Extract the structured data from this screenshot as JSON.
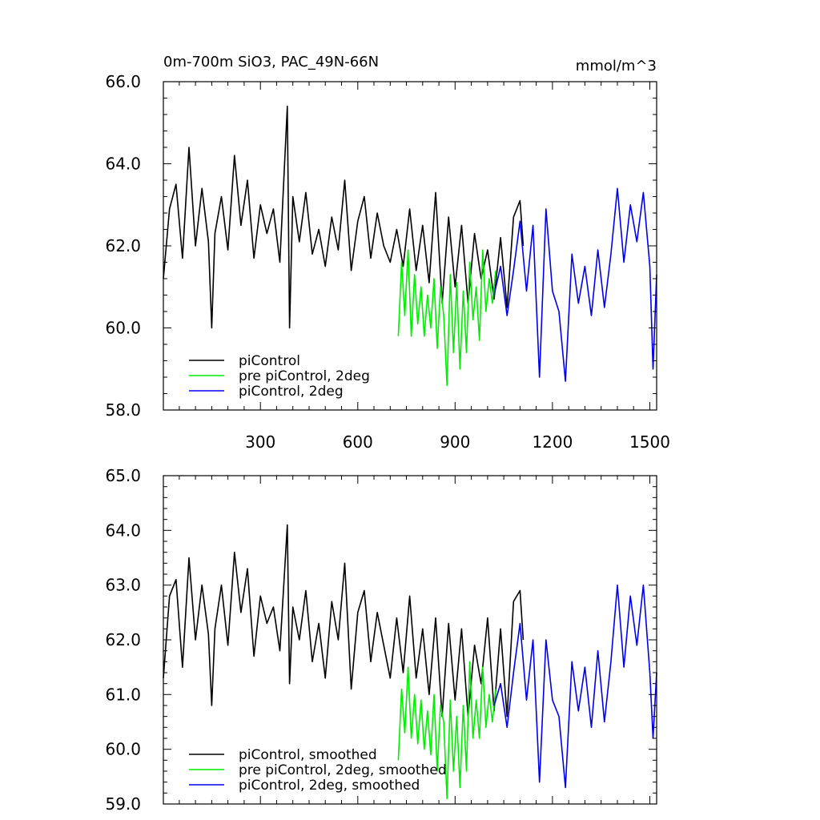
{
  "chart_data": [
    {
      "type": "line",
      "title": "0m-700m SiO3, PAC_49N-66N",
      "units": "mmol/m^3",
      "xlim": [
        1,
        1521
      ],
      "ylim": [
        58.0,
        66.0
      ],
      "xticks": [
        300,
        600,
        900,
        1200,
        1500
      ],
      "xtick_labels": [
        "300",
        "600",
        "900",
        "1200",
        "1500"
      ],
      "yticks": [
        58.0,
        60.0,
        62.0,
        64.0,
        66.0
      ],
      "ytick_labels": [
        "58.0",
        "60.0",
        "62.0",
        "64.0",
        "66.0"
      ],
      "legend_position": "bottom-left",
      "series": [
        {
          "name": "piControl",
          "color": "#000000",
          "x": [
            1,
            20,
            40,
            60,
            80,
            100,
            120,
            140,
            150,
            160,
            180,
            200,
            220,
            240,
            260,
            280,
            300,
            320,
            340,
            360,
            383,
            390,
            400,
            420,
            440,
            460,
            480,
            500,
            520,
            540,
            560,
            580,
            600,
            620,
            640,
            660,
            680,
            700,
            720,
            740,
            760,
            780,
            800,
            820,
            840,
            860,
            880,
            900,
            920,
            940,
            960,
            980,
            1000,
            1020,
            1040,
            1060,
            1080,
            1100,
            1110
          ],
          "values": [
            61.2,
            62.9,
            63.5,
            61.7,
            64.4,
            62.0,
            63.4,
            62.1,
            60.0,
            62.3,
            63.2,
            61.9,
            64.2,
            62.5,
            63.6,
            61.7,
            63.0,
            62.3,
            62.9,
            61.6,
            65.4,
            60.0,
            63.2,
            62.1,
            63.3,
            61.8,
            62.4,
            61.5,
            62.7,
            61.9,
            63.6,
            61.4,
            62.6,
            63.2,
            61.7,
            62.8,
            62.0,
            61.6,
            62.4,
            61.5,
            62.9,
            61.4,
            62.5,
            61.1,
            63.3,
            60.6,
            62.7,
            61.0,
            62.5,
            60.6,
            62.3,
            61.2,
            61.9,
            60.7,
            62.2,
            60.5,
            62.7,
            63.1,
            62.0
          ]
        },
        {
          "name": "pre piControl, 2deg",
          "color": "#00ee00",
          "x": [
            725,
            735,
            745,
            755,
            765,
            775,
            785,
            795,
            805,
            815,
            825,
            835,
            845,
            855,
            865,
            875,
            885,
            895,
            905,
            915,
            925,
            935,
            945,
            955,
            965,
            975,
            985,
            995,
            1005,
            1015,
            1025
          ],
          "values": [
            59.8,
            61.6,
            60.3,
            61.9,
            59.8,
            61.3,
            60.1,
            61.0,
            59.8,
            60.8,
            60.0,
            61.2,
            59.5,
            61.0,
            60.3,
            58.6,
            61.3,
            59.4,
            61.1,
            59.0,
            60.9,
            59.4,
            61.6,
            60.2,
            61.0,
            59.7,
            61.9,
            60.4,
            61.2,
            60.6,
            61.4
          ]
        },
        {
          "name": "piControl, 2deg",
          "color": "#0000ee",
          "x": [
            1020,
            1040,
            1060,
            1080,
            1100,
            1120,
            1140,
            1160,
            1180,
            1200,
            1220,
            1240,
            1260,
            1280,
            1300,
            1320,
            1340,
            1360,
            1380,
            1400,
            1420,
            1440,
            1460,
            1480,
            1500,
            1510,
            1521
          ],
          "values": [
            60.8,
            61.5,
            60.3,
            61.4,
            62.6,
            60.9,
            62.5,
            58.8,
            62.9,
            60.9,
            60.4,
            58.7,
            61.8,
            60.6,
            61.5,
            60.3,
            61.9,
            60.5,
            61.8,
            63.4,
            61.6,
            63.0,
            62.1,
            63.3,
            61.5,
            59.0,
            61.3
          ]
        }
      ]
    },
    {
      "type": "line",
      "xlim": [
        1,
        1521
      ],
      "ylim": [
        59.0,
        65.0
      ],
      "xticks": [
        300,
        600,
        900,
        1200,
        1500
      ],
      "yticks": [
        59.0,
        60.0,
        61.0,
        62.0,
        63.0,
        64.0,
        65.0
      ],
      "ytick_labels": [
        "59.0",
        "60.0",
        "61.0",
        "62.0",
        "63.0",
        "64.0",
        "65.0"
      ],
      "legend_position": "bottom-left",
      "series": [
        {
          "name": "piControl, smoothed",
          "color": "#000000",
          "x": [
            1,
            20,
            40,
            60,
            80,
            100,
            120,
            140,
            150,
            160,
            180,
            200,
            220,
            240,
            260,
            280,
            300,
            320,
            340,
            360,
            383,
            390,
            400,
            420,
            440,
            460,
            480,
            500,
            520,
            540,
            560,
            580,
            600,
            620,
            640,
            660,
            680,
            700,
            720,
            740,
            760,
            780,
            800,
            820,
            840,
            860,
            880,
            900,
            920,
            940,
            960,
            980,
            1000,
            1020,
            1040,
            1060,
            1080,
            1100,
            1110
          ],
          "values": [
            61.3,
            62.8,
            63.1,
            61.5,
            63.5,
            62.0,
            63.0,
            62.1,
            60.8,
            62.2,
            63.0,
            61.9,
            63.6,
            62.5,
            63.3,
            61.7,
            62.8,
            62.3,
            62.6,
            61.8,
            64.1,
            61.2,
            62.6,
            62.0,
            62.9,
            61.6,
            62.3,
            61.3,
            62.7,
            62.0,
            63.4,
            61.1,
            62.5,
            62.9,
            61.6,
            62.5,
            61.9,
            61.3,
            62.4,
            61.4,
            62.8,
            61.3,
            62.2,
            61.0,
            62.4,
            60.6,
            62.3,
            60.9,
            62.2,
            60.6,
            61.9,
            61.2,
            62.4,
            60.7,
            62.2,
            60.6,
            62.7,
            62.9,
            62.0
          ]
        },
        {
          "name": "pre piControl, 2deg, smoothed",
          "color": "#00ee00",
          "x": [
            725,
            735,
            745,
            755,
            765,
            775,
            785,
            795,
            805,
            815,
            825,
            835,
            845,
            855,
            865,
            875,
            885,
            895,
            905,
            915,
            925,
            935,
            945,
            955,
            965,
            975,
            985,
            995,
            1005,
            1015,
            1025
          ],
          "values": [
            59.8,
            61.1,
            60.3,
            61.5,
            60.2,
            61.0,
            60.1,
            60.9,
            60.0,
            60.7,
            59.9,
            61.0,
            59.6,
            60.8,
            60.5,
            59.1,
            60.9,
            59.6,
            60.6,
            59.3,
            60.8,
            59.6,
            61.6,
            60.2,
            60.9,
            60.2,
            61.5,
            60.4,
            61.0,
            60.5,
            61.1
          ]
        },
        {
          "name": "piControl, 2deg, smoothed",
          "color": "#0000ee",
          "x": [
            1020,
            1040,
            1060,
            1080,
            1100,
            1120,
            1140,
            1160,
            1180,
            1200,
            1220,
            1240,
            1260,
            1280,
            1300,
            1320,
            1340,
            1360,
            1380,
            1400,
            1420,
            1440,
            1460,
            1480,
            1500,
            1510,
            1521
          ],
          "values": [
            60.8,
            61.2,
            60.4,
            61.4,
            62.3,
            60.9,
            62.0,
            59.4,
            62.0,
            60.9,
            60.6,
            59.3,
            61.6,
            60.7,
            61.5,
            60.4,
            61.8,
            60.5,
            61.6,
            63.0,
            61.5,
            62.8,
            61.9,
            63.0,
            61.4,
            60.2,
            61.4
          ]
        }
      ]
    }
  ]
}
